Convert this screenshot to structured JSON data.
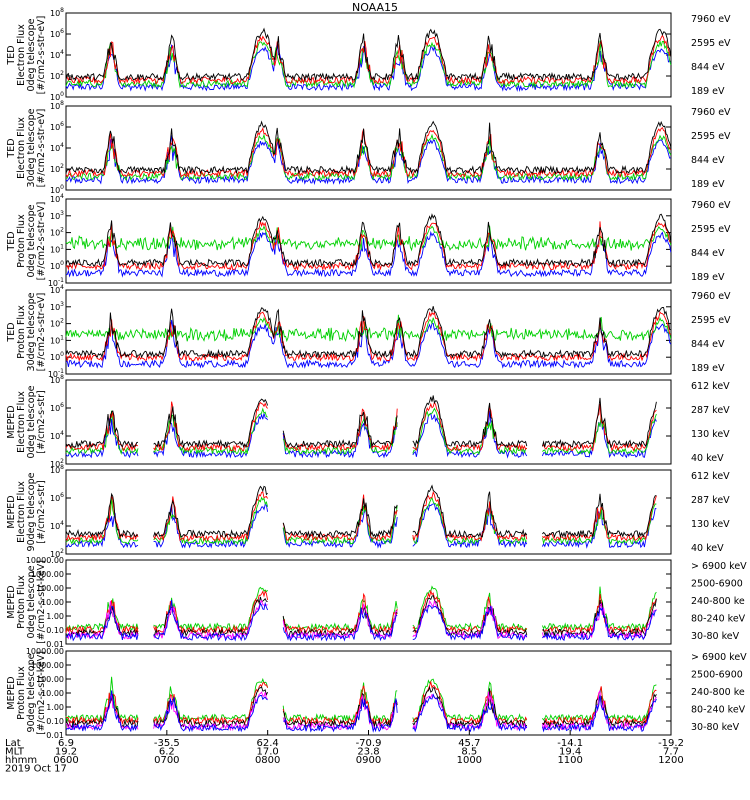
{
  "chart_data": {
    "type": "line",
    "title": "NOAA15",
    "time_axis": {
      "rows": [
        {
          "label": "Lat",
          "values": [
            "6.9",
            "-35.5",
            "62.4",
            "-70.9",
            "45.7",
            "-14.1",
            "-19.2"
          ]
        },
        {
          "label": "MLT",
          "values": [
            "19.2",
            "6.2",
            "17.0",
            "23.8",
            "8.5",
            "19.4",
            "7.7"
          ]
        },
        {
          "label": "hhmm",
          "values": [
            "0600",
            "0700",
            "0800",
            "0900",
            "1000",
            "1100",
            "1200"
          ]
        }
      ],
      "date": "2019 Oct 17"
    },
    "panels": [
      {
        "ylabel": [
          "TED",
          "Electron Flux",
          "0deg telescope",
          "[#/cm2-s-str-eV]"
        ],
        "yscale": "log",
        "ticks": [
          "10^0",
          "10^2",
          "10^4",
          "10^6",
          "10^8"
        ],
        "series": [
          {
            "name": "7960 eV",
            "color": "#000000"
          },
          {
            "name": "2595 eV",
            "color": "#ff0000"
          },
          {
            "name": "844 eV",
            "color": "#00d000"
          },
          {
            "name": "189 eV",
            "color": "#0000ff"
          }
        ]
      },
      {
        "ylabel": [
          "TED",
          "Electron Flux",
          "30deg telescope",
          "[#/cm2-s-str-eV]"
        ],
        "yscale": "log",
        "ticks": [
          "10^0",
          "10^2",
          "10^4",
          "10^6",
          "10^8"
        ],
        "series": [
          {
            "name": "7960 eV",
            "color": "#000000"
          },
          {
            "name": "2595 eV",
            "color": "#ff0000"
          },
          {
            "name": "844 eV",
            "color": "#00d000"
          },
          {
            "name": "189 eV",
            "color": "#0000ff"
          }
        ]
      },
      {
        "ylabel": [
          "TED",
          "Proton Flux",
          "0deg telescope",
          "[#/cm2-s-str-eV]"
        ],
        "yscale": "log",
        "ticks": [
          "10^-1",
          "10^0",
          "10^1",
          "10^2",
          "10^3",
          "10^4"
        ],
        "series": [
          {
            "name": "7960 eV",
            "color": "#000000"
          },
          {
            "name": "2595 eV",
            "color": "#ff0000"
          },
          {
            "name": "844 eV",
            "color": "#00d000"
          },
          {
            "name": "189 eV",
            "color": "#0000ff"
          }
        ]
      },
      {
        "ylabel": [
          "TED",
          "Proton Flux",
          "30deg telescope",
          "[#/cm2-s-str-eV]"
        ],
        "yscale": "log",
        "ticks": [
          "10^-1",
          "10^0",
          "10^1",
          "10^2",
          "10^3",
          "10^4"
        ],
        "series": [
          {
            "name": "7960 eV",
            "color": "#000000"
          },
          {
            "name": "2595 eV",
            "color": "#ff0000"
          },
          {
            "name": "844 eV",
            "color": "#00d000"
          },
          {
            "name": "189 eV",
            "color": "#0000ff"
          }
        ]
      },
      {
        "ylabel": [
          "MEPED",
          "Electron Flux",
          "0deg telescope",
          "[#/cm2-s-str]"
        ],
        "yscale": "log",
        "ticks": [
          "10^2",
          "10^4",
          "10^6",
          "10^8"
        ],
        "series": [
          {
            "name": "612 keV",
            "color": "#000000"
          },
          {
            "name": "287 keV",
            "color": "#ff0000"
          },
          {
            "name": "130 keV",
            "color": "#00d000"
          },
          {
            "name": "40 keV",
            "color": "#0000ff"
          }
        ]
      },
      {
        "ylabel": [
          "MEPED",
          "Electron Flux",
          "90deg telescope",
          "[#/cm2-s-str]"
        ],
        "yscale": "log",
        "ticks": [
          "10^2",
          "10^4",
          "10^6",
          "10^8"
        ],
        "series": [
          {
            "name": "612 keV",
            "color": "#000000"
          },
          {
            "name": "287 keV",
            "color": "#ff0000"
          },
          {
            "name": "130 keV",
            "color": "#00d000"
          },
          {
            "name": "40 keV",
            "color": "#0000ff"
          }
        ]
      },
      {
        "ylabel": [
          "MEPED",
          "Proton Flux",
          "0deg telescope",
          "[#/cm2-s-str-keV]"
        ],
        "yscale": "log",
        "ticks": [
          "0.01",
          "0.10",
          "1.00",
          "10.00",
          "100.00",
          "1000.00",
          "10000.00"
        ],
        "series": [
          {
            "name": "> 6900 keV",
            "color": "#ff00ff"
          },
          {
            "name": "2500-6900",
            "color": "#000000"
          },
          {
            "name": "240-800 ke",
            "color": "#ff0000"
          },
          {
            "name": "80-240 keV",
            "color": "#00d000"
          },
          {
            "name": "30-80 keV",
            "color": "#0000ff"
          }
        ]
      },
      {
        "ylabel": [
          "MEPED",
          "Proton Flux",
          "90deg telescope",
          "[#/cm2-s-str-keV]"
        ],
        "yscale": "log",
        "ticks": [
          "0.01",
          "0.10",
          "1.00",
          "10.00",
          "100.00",
          "1000.00",
          "10000.00"
        ],
        "series": [
          {
            "name": "> 6900 keV",
            "color": "#ff00ff"
          },
          {
            "name": "2500-6900",
            "color": "#000000"
          },
          {
            "name": "240-800 ke",
            "color": "#ff0000"
          },
          {
            "name": "80-240 keV",
            "color": "#00d000"
          },
          {
            "name": "30-80 keV",
            "color": "#0000ff"
          }
        ]
      }
    ]
  }
}
